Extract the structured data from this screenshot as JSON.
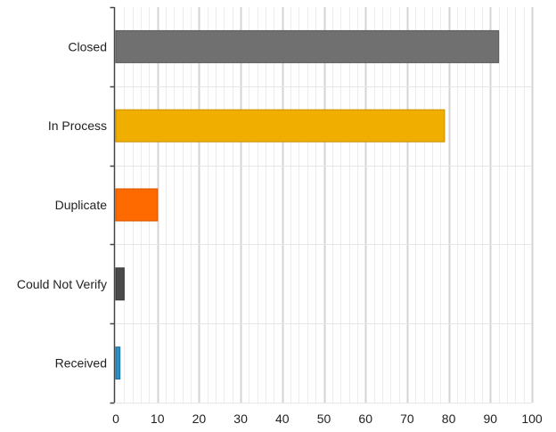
{
  "chart_data": {
    "type": "bar",
    "orientation": "horizontal",
    "categories": [
      "Closed",
      "In Process",
      "Duplicate",
      "Could Not Verify",
      "Received"
    ],
    "values": [
      92,
      79,
      10,
      2,
      1
    ],
    "bar_colors": [
      "#707070",
      "#f0ae00",
      "#ff6a00",
      "#4a4a4a",
      "#2d8fc4"
    ],
    "bar_border_colors": [
      "#5a5a5a",
      "#c89000",
      "#d45500",
      "#333333",
      "#1f6f9e"
    ],
    "xlim": [
      0,
      100
    ],
    "xticks": [
      "0",
      "10",
      "20",
      "30",
      "40",
      "50",
      "60",
      "70",
      "80",
      "90",
      "100"
    ],
    "grid": true,
    "title": "",
    "xlabel": "",
    "ylabel": ""
  }
}
